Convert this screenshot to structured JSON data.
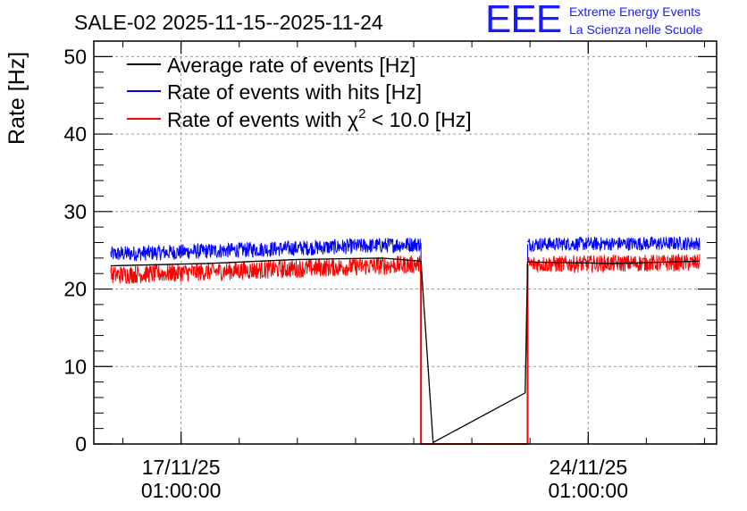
{
  "chart_data": {
    "type": "line",
    "title": "SALE-02 2025-11-15--2025-11-24",
    "ylabel": "Rate [Hz]",
    "xlabel": "",
    "ylim": [
      0,
      52
    ],
    "yticks": [
      0,
      10,
      20,
      30,
      40,
      50
    ],
    "x_range_days": [
      "2025-11-15 13:00",
      "2025-11-26 06:00"
    ],
    "xticks": [
      {
        "date": "17/11/25",
        "time": "01:00:00",
        "at": "2025-11-17 01:00"
      },
      {
        "date": "24/11/25",
        "time": "01:00:00",
        "at": "2025-11-24 01:00"
      }
    ],
    "grid": true,
    "legend_position": "top-left",
    "series": [
      {
        "name": "Average rate of events [Hz]",
        "color": "#000000",
        "x": [
          "2025-11-15 20:00",
          "2025-11-17 12:00",
          "2025-11-19 00:00",
          "2025-11-20 12:00",
          "2025-11-21 04:00",
          "2025-11-21 09:00",
          "2025-11-22 23:00",
          "2025-11-23 00:00",
          "2025-11-24 12:00",
          "2025-11-25 23:00"
        ],
        "y": [
          23.0,
          23.3,
          23.8,
          24.0,
          23.6,
          0.2,
          6.6,
          23.5,
          23.3,
          23.6
        ]
      },
      {
        "name": "Rate of events with hits [Hz]",
        "color": "#0000ff",
        "segments": [
          {
            "start": "2025-11-15 20:00",
            "end": "2025-11-21 04:00",
            "level_start": 24.5,
            "level_end": 25.8,
            "noise": 1.0
          },
          {
            "start": "2025-11-23 00:00",
            "end": "2025-11-25 23:00",
            "level_start": 25.8,
            "level_end": 25.9,
            "noise": 0.9
          }
        ]
      },
      {
        "name": "Rate of events with χ² < 10.0 [Hz]",
        "color": "#ff0000",
        "segments": [
          {
            "start": "2025-11-15 20:00",
            "end": "2025-11-21 04:00",
            "level_start": 21.8,
            "level_end": 23.2,
            "noise": 1.2
          },
          {
            "start": "2025-11-23 00:00",
            "end": "2025-11-25 23:00",
            "level_start": 23.2,
            "level_end": 23.4,
            "noise": 1.1
          }
        ],
        "gap": {
          "start": "2025-11-21 04:00",
          "end": "2025-11-23 00:00",
          "value": 0
        }
      }
    ],
    "legend_labels": {
      "average": "Average rate of events [Hz]",
      "hits": "Rate of events with hits [Hz]",
      "chi2_prefix": "Rate of events with ",
      "chi2_symbol": "χ",
      "chi2_sup": "2",
      "chi2_suffix": " < 10.0 [Hz]"
    }
  },
  "logo": {
    "mark": "EEE",
    "line1": "Extreme Energy Events",
    "line2": "La Scienza nelle Scuole",
    "color": "#1a1aff"
  }
}
